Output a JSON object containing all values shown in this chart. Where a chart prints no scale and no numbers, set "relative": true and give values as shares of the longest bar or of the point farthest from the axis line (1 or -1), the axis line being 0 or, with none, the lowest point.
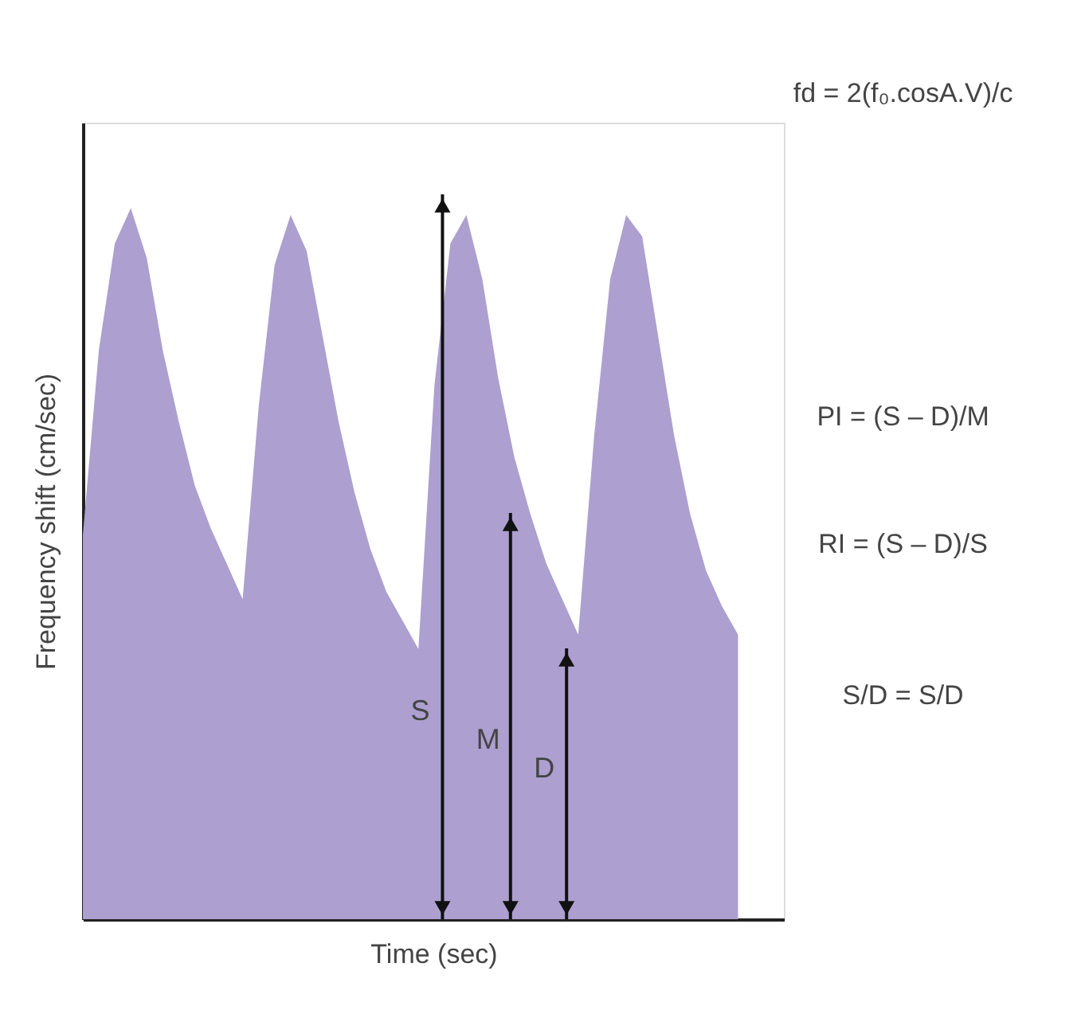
{
  "chart_data": {
    "type": "area",
    "relative": true,
    "color": "#ad9fcf",
    "xlabel": "Time (sec)",
    "ylabel": "Frequency shift (cm/sec)",
    "grid": false,
    "categories": [
      null,
      null,
      null,
      null,
      null,
      null,
      null,
      null,
      null,
      null,
      null,
      null,
      null,
      null,
      null,
      null,
      null,
      null,
      null,
      null,
      null,
      null,
      null,
      null,
      null,
      null,
      null,
      null,
      null,
      null,
      null,
      null,
      null,
      null,
      null,
      null,
      null,
      null,
      null,
      null,
      null,
      null
    ],
    "values": [
      0.54,
      0.8,
      0.95,
      1.0,
      0.93,
      0.8,
      0.7,
      0.61,
      0.55,
      0.5,
      0.45,
      0.72,
      0.92,
      0.99,
      0.94,
      0.82,
      0.7,
      0.6,
      0.52,
      0.46,
      0.42,
      0.38,
      0.75,
      0.95,
      0.99,
      0.9,
      0.76,
      0.65,
      0.57,
      0.5,
      0.45,
      0.4,
      0.68,
      0.9,
      0.99,
      0.96,
      0.82,
      0.68,
      0.57,
      0.49,
      0.44,
      0.4
    ],
    "annotations": [
      "fd = 2(f₀.cosA.V)/c",
      "PI = (S – D)/M",
      "RI = (S – D)/S",
      "S/D = S/D",
      "S",
      "M",
      "D"
    ]
  }
}
